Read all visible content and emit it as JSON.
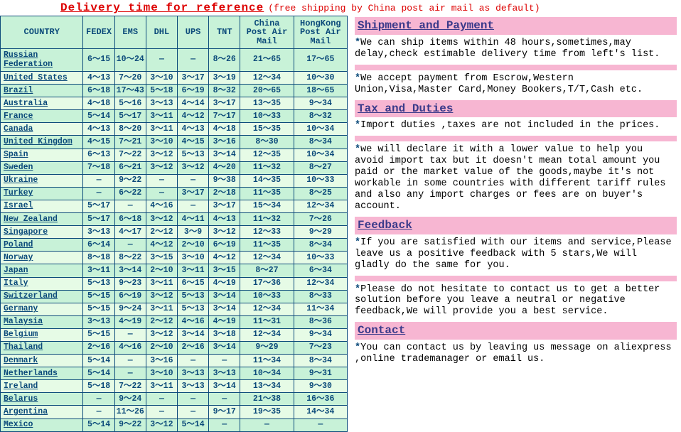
{
  "title": {
    "main": "Delivery time for reference",
    "note": "(free shipping by China post air mail as default)"
  },
  "table": {
    "headers": [
      "COUNTRY",
      "FEDEX",
      "EMS",
      "DHL",
      "UPS",
      "TNT",
      "China Post Air Mail",
      "HongKong Post Air Mail"
    ],
    "rows": [
      [
        "Russian Federation",
        "6～15",
        "10～24",
        "—",
        "—",
        "8～26",
        "21～65",
        "17～65"
      ],
      [
        "United States",
        "4～13",
        "7～20",
        "3～10",
        "3～17",
        "3～19",
        "12～34",
        "10～30"
      ],
      [
        "Brazil",
        "6～18",
        "17～43",
        "5～18",
        "6～19",
        "8～32",
        "20～65",
        "18～65"
      ],
      [
        "Australia",
        "4～18",
        "5～16",
        "3～13",
        "4～14",
        "3～17",
        "13～35",
        "9～34"
      ],
      [
        "France",
        "5～14",
        "5～17",
        "3～11",
        "4～12",
        "7～17",
        "10～33",
        "8～32"
      ],
      [
        "Canada",
        "4～13",
        "8～20",
        "3～11",
        "4～13",
        "4～18",
        "15～35",
        "10～34"
      ],
      [
        "United Kingdom",
        "4～15",
        "7～21",
        "3～10",
        "4～15",
        "3～16",
        "8～30",
        "8～34"
      ],
      [
        "Spain",
        "6～13",
        "7～22",
        "3～12",
        "5～13",
        "3～14",
        "12～35",
        "10～34"
      ],
      [
        "Sweden",
        "7～18",
        "6～21",
        "3～12",
        "3～12",
        "4～20",
        "11～32",
        "8～27"
      ],
      [
        "Ukraine",
        "—",
        "9～22",
        "—",
        "—",
        "9～38",
        "14～35",
        "10～33"
      ],
      [
        "Turkey",
        "—",
        "6～22",
        "—",
        "3～17",
        "2～18",
        "11～35",
        "8～25"
      ],
      [
        "Israel",
        "5～17",
        "—",
        "4～16",
        "—",
        "3～17",
        "15～34",
        "12～34"
      ],
      [
        "New Zealand",
        "5～17",
        "6～18",
        "3～12",
        "4～11",
        "4～13",
        "11～32",
        "7～26"
      ],
      [
        "Singapore",
        "3～13",
        "4～17",
        "2～12",
        "3～9",
        "3～12",
        "12～33",
        "9～29"
      ],
      [
        "Poland",
        "6～14",
        "—",
        "4～12",
        "2～10",
        "6～19",
        "11～35",
        "8～34"
      ],
      [
        "Norway",
        "8～18",
        "8～22",
        "3～15",
        "3～10",
        "4～12",
        "12～34",
        "10～33"
      ],
      [
        "Japan",
        "3～11",
        "3～14",
        "2～10",
        "3～11",
        "3～15",
        "8～27",
        "6～34"
      ],
      [
        "Italy",
        "5～13",
        "9～23",
        "3～11",
        "6～15",
        "4～19",
        "17～36",
        "12～34"
      ],
      [
        "Switzerland",
        "5～15",
        "6～19",
        "3～12",
        "5～13",
        "3～14",
        "10～33",
        "8～33"
      ],
      [
        "Germany",
        "5～15",
        "9～24",
        "3～11",
        "5～13",
        "3～14",
        "12～34",
        "11～34"
      ],
      [
        "Malaysia",
        "3～13",
        "4～19",
        "2～12",
        "4～16",
        "4～19",
        "11～31",
        "8～36"
      ],
      [
        "Belgium",
        "5～15",
        "—",
        "3～12",
        "3～14",
        "3～18",
        "12～34",
        "9～34"
      ],
      [
        "Thailand",
        "2～16",
        "4～16",
        "2～10",
        "2～16",
        "3～14",
        "9～29",
        "7～23"
      ],
      [
        "Denmark",
        "5～14",
        "—",
        "3～16",
        "—",
        "—",
        "11～34",
        "8～34"
      ],
      [
        "Netherlands",
        "5～14",
        "—",
        "3～10",
        "3～13",
        "3～13",
        "10～34",
        "9～31"
      ],
      [
        "Ireland",
        "5～18",
        "7～22",
        "3～11",
        "3～13",
        "3～14",
        "13～34",
        "9～30"
      ],
      [
        "Belarus",
        "—",
        "9～24",
        "—",
        "—",
        "—",
        "21～38",
        "16～36"
      ],
      [
        "Argentina",
        "—",
        "11～26",
        "—",
        "—",
        "9～17",
        "19～35",
        "14～34"
      ],
      [
        "Mexico",
        "5～14",
        "9～22",
        "3～12",
        "5～14",
        "—",
        "—",
        "—"
      ]
    ]
  },
  "sections": {
    "shipment": {
      "h": "Shipment and Payment",
      "p1": "We can ship items within 48 hours,sometimes,may delay,check estimable delivery time from left's list.",
      "p2": "We accept payment from Escrow,Western Union,Visa,Master Card,Money Bookers,T/T,Cash etc."
    },
    "tax": {
      "h": "Tax and Duties",
      "p1": "Import duties ,taxes are not included in the prices.",
      "p2": "we will declare it with a lower value to help you avoid import tax but it doesn't mean total amount you paid or the market value of the goods,maybe it's not workable in some countries with different tariff rules and also any import charges or fees are on buyer's account."
    },
    "feedback": {
      "h": "Feedback",
      "p1": "If you are satisfied with our items and service,Please leave us a positive feedback with 5 stars,We will gladly do the same for you.",
      "p2": "Please do not hesitate to contact us to get a better solution before you leave a neutral or negative feedback,We will provide you a best service."
    },
    "contact": {
      "h": "Contact",
      "p1": "You can contact us by leaving us message on aliexpress ,online trademanager or email us."
    }
  }
}
